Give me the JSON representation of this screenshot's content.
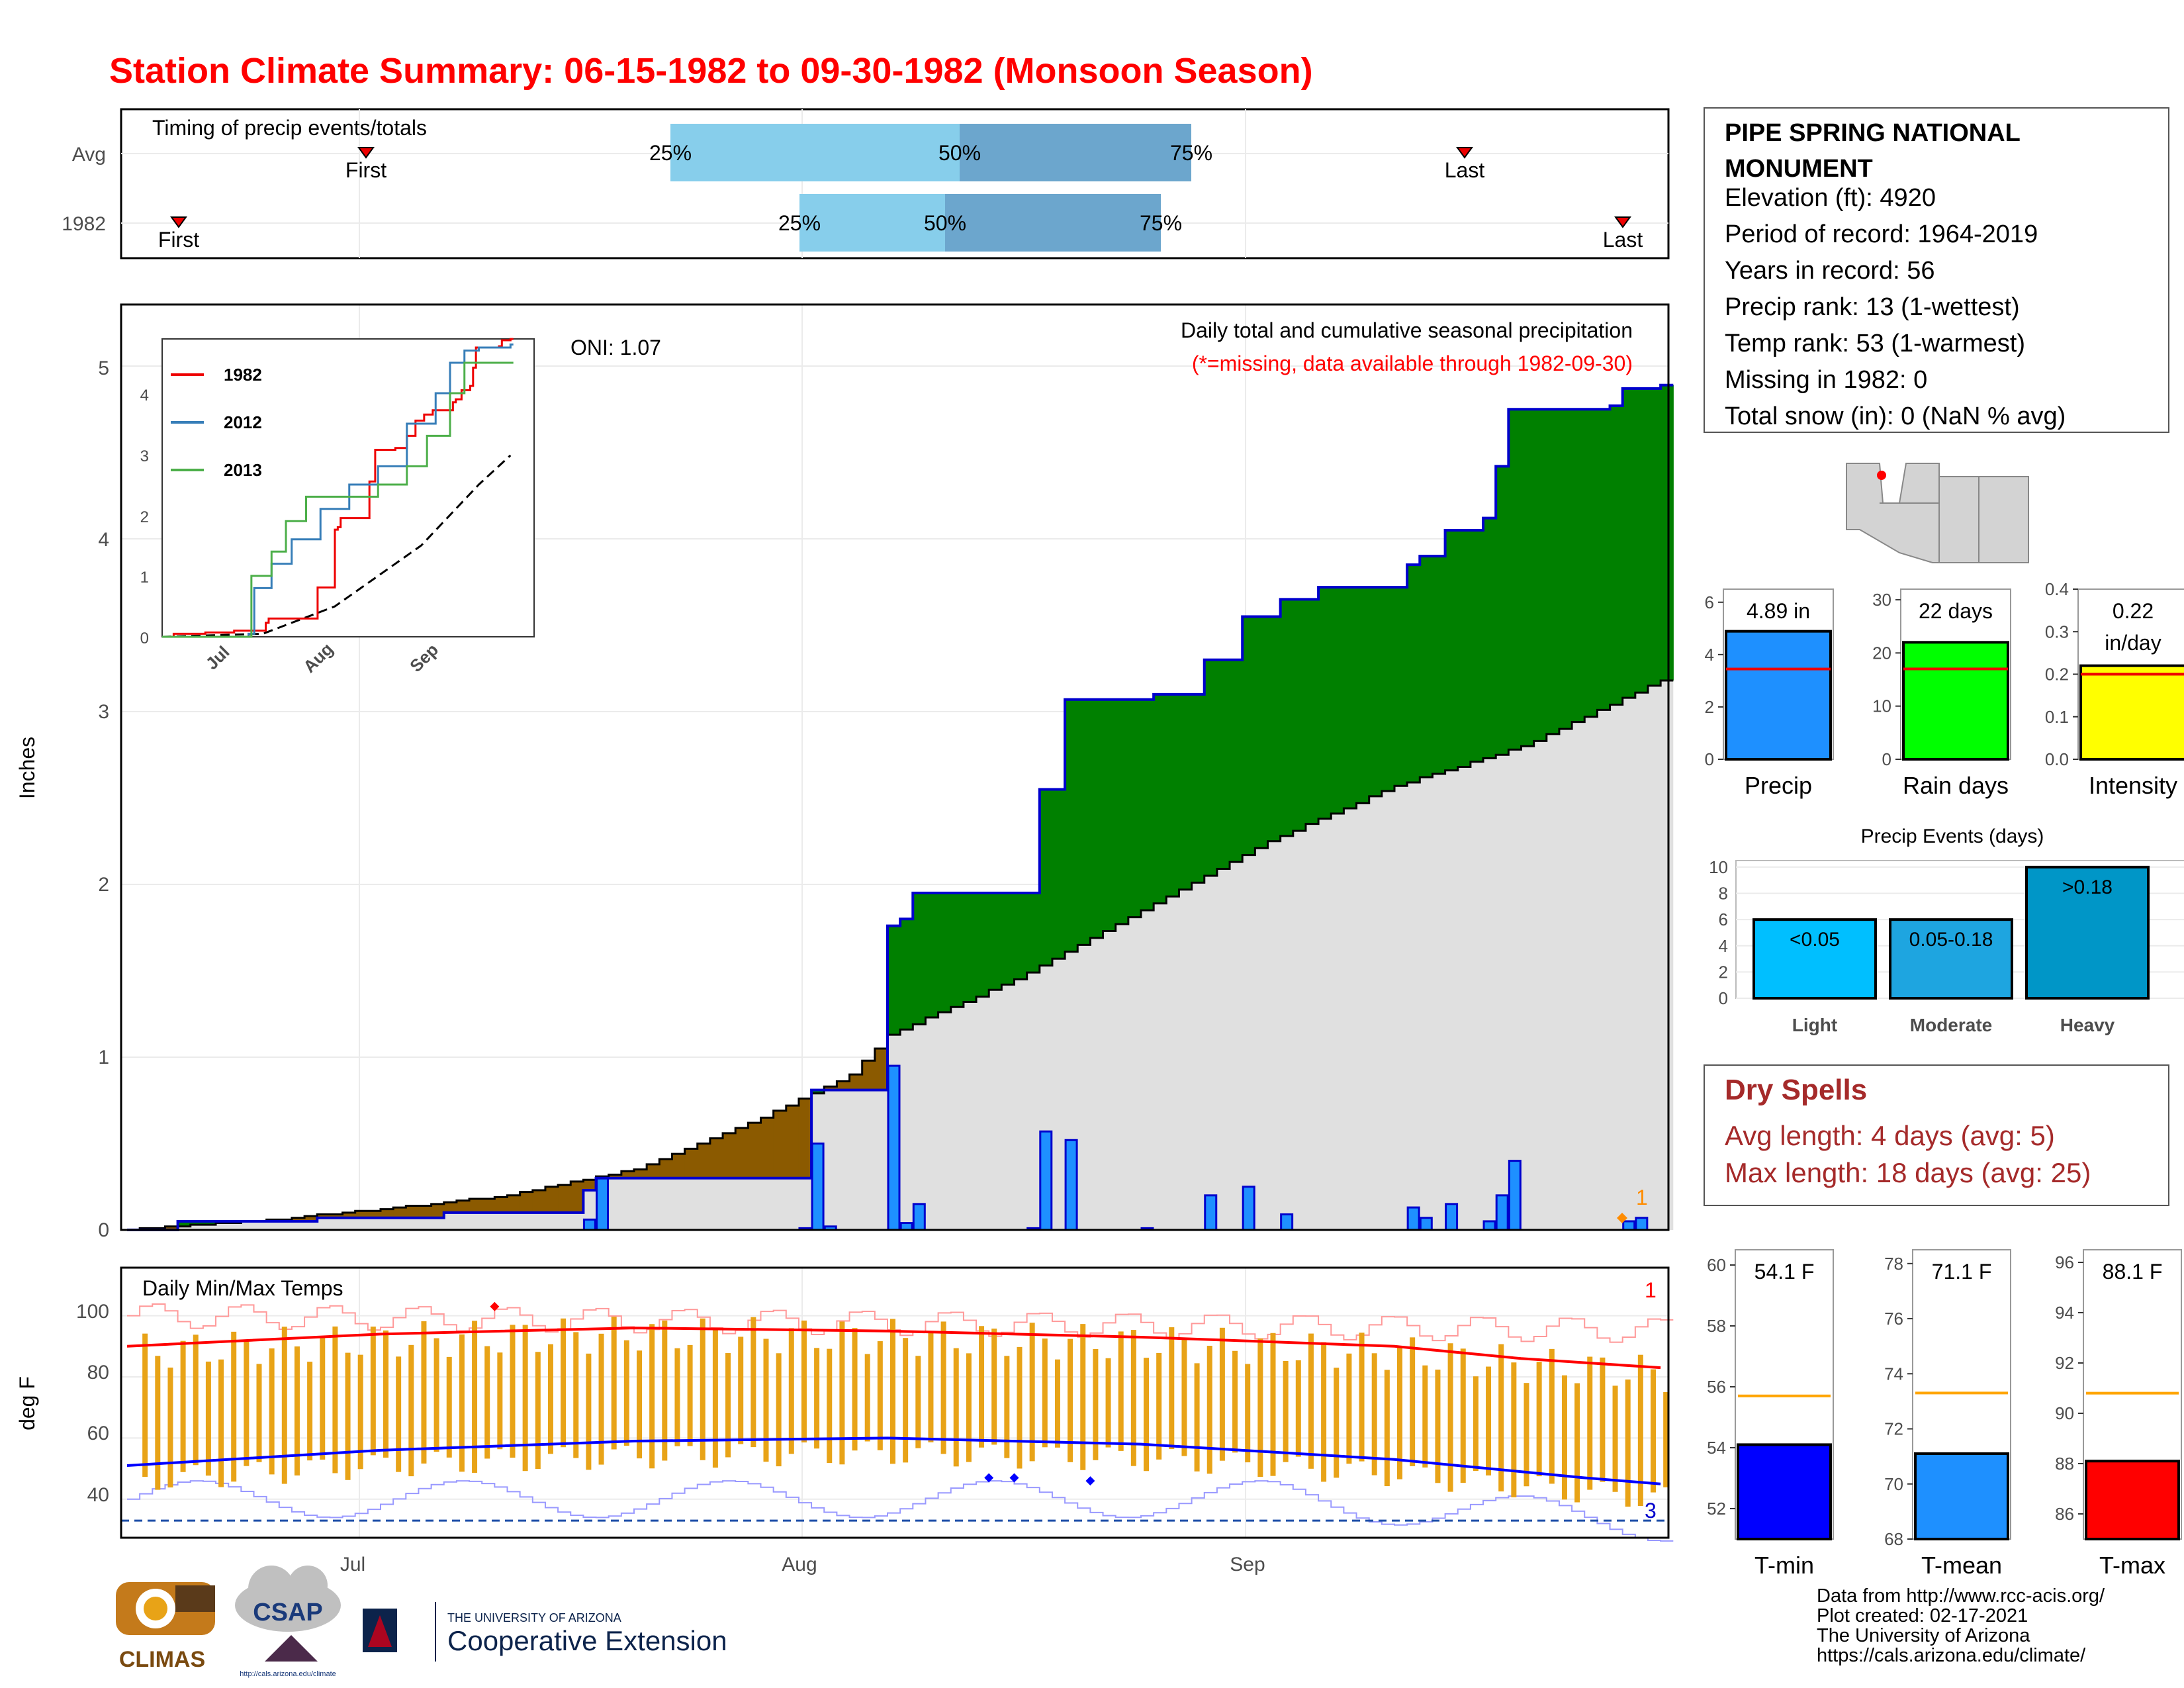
{
  "title": "Station Climate Summary: 06-15-1982 to 09-30-1982 (Monsoon Season)",
  "colors": {
    "title": "#ff0000",
    "precip_bar": "#1e90ff",
    "brown": "#8b5a00",
    "green": "#008000",
    "gray": "#e0e0e0",
    "tmax": "#ff0000",
    "tmin": "#0000ff",
    "range": "#e8a317",
    "dry": "#a52a2a"
  },
  "timing": {
    "title": "Timing of precip events/totals",
    "rows": [
      {
        "label": "Avg",
        "first": "First",
        "last": "Last",
        "q25": "25%",
        "q50": "50%",
        "q75": "75%"
      },
      {
        "label": "1982",
        "first": "First",
        "last": "Last",
        "q25": "25%",
        "q50": "50%",
        "q75": "75%"
      }
    ]
  },
  "station": {
    "name": "PIPE SPRING NATIONAL MONUMENT",
    "lines": [
      "Elevation (ft): 4920",
      "Period of record: 1964-2019",
      "Years in record: 56",
      "Precip rank: 13 (1-wettest)",
      "Temp rank: 53 (1-warmest)",
      "Missing in 1982: 0",
      "Total snow (in): 0 (NaN % avg)"
    ]
  },
  "main": {
    "ylabel": "Inches",
    "oni": "ONI: 1.07",
    "subtitle": "Daily total and cumulative seasonal precipitation",
    "missing_note": "(*=missing, data available through 1982-09-30)",
    "flag": "1",
    "x_ticks": [
      "Jul",
      "Aug",
      "Sep"
    ],
    "y_ticks": [
      "0",
      "1",
      "2",
      "3",
      "4",
      "5"
    ]
  },
  "inset": {
    "legend": [
      "1982",
      "2012",
      "2013"
    ],
    "y_ticks": [
      "0",
      "1",
      "2",
      "3",
      "4"
    ],
    "x_ticks": [
      "Jul",
      "Aug",
      "Sep"
    ]
  },
  "temp": {
    "title": "Daily Min/Max Temps",
    "ylabel": "deg F",
    "flag_top": "1",
    "flag_bottom": "3",
    "y_ticks": [
      "40",
      "60",
      "80",
      "100"
    ]
  },
  "small": {
    "precip": {
      "value": "4.89 in",
      "label": "Precip",
      "ticks": [
        "0",
        "2",
        "4",
        "6"
      ]
    },
    "raindays": {
      "value": "22 days",
      "label": "Rain days",
      "ticks": [
        "0",
        "10",
        "20",
        "30"
      ]
    },
    "intensity": {
      "value": "0.22",
      "unit": "in/day",
      "label": "Intensity",
      "ticks": [
        "0.0",
        "0.1",
        "0.2",
        "0.3",
        "0.4"
      ]
    }
  },
  "events": {
    "title": "Precip Events (days)",
    "labels": [
      "Light",
      "Moderate",
      "Heavy"
    ],
    "bar_labels": [
      "<0.05",
      "0.05-0.18",
      ">0.18"
    ],
    "ticks": [
      "0",
      "2",
      "4",
      "6",
      "8",
      "10"
    ]
  },
  "dry": {
    "title": "Dry Spells",
    "avg": "Avg length: 4 days (avg: 5)",
    "max": "Max length: 18 days (avg: 25)"
  },
  "temps_small": {
    "tmin": {
      "value": "54.1 F",
      "label": "T-min",
      "ticks": [
        "52",
        "54",
        "56",
        "58",
        "60"
      ]
    },
    "tmean": {
      "value": "71.1 F",
      "label": "T-mean",
      "ticks": [
        "68",
        "70",
        "72",
        "74",
        "76",
        "78"
      ]
    },
    "tmax": {
      "value": "88.1 F",
      "label": "T-max",
      "ticks": [
        "86",
        "88",
        "90",
        "92",
        "94",
        "96"
      ]
    }
  },
  "credits": [
    "Data from http://www.rcc-acis.org/",
    "Plot created: 02-17-2021",
    "The University of Arizona",
    "https://cals.arizona.edu/climate/"
  ],
  "logos": {
    "climas": "CLIMAS",
    "csap": "CSAP",
    "csap_url": "http://cals.arizona.edu/climate",
    "ua_small": "THE UNIVERSITY OF ARIZONA",
    "ua_big": "Cooperative Extension"
  },
  "chart_data": [
    {
      "type": "area",
      "title": "Daily total and cumulative seasonal precipitation",
      "ylabel": "Inches",
      "ylim": [
        0,
        5.3
      ],
      "x_range": [
        "1982-06-15",
        "1982-09-30"
      ],
      "cumulative_1982": [
        [
          0,
          0
        ],
        [
          4,
          0.05
        ],
        [
          15,
          0.07
        ],
        [
          25,
          0.1
        ],
        [
          36,
          0.23
        ],
        [
          37,
          0.3
        ],
        [
          53,
          0.3
        ],
        [
          54,
          0.81
        ],
        [
          59,
          0.81
        ],
        [
          60,
          1.76
        ],
        [
          61,
          1.8
        ],
        [
          62,
          1.95
        ],
        [
          71,
          1.95
        ],
        [
          72,
          2.55
        ],
        [
          74,
          3.07
        ],
        [
          80,
          3.07
        ],
        [
          81,
          3.1
        ],
        [
          85,
          3.3
        ],
        [
          88,
          3.55
        ],
        [
          91,
          3.65
        ],
        [
          94,
          3.72
        ],
        [
          100,
          3.72
        ],
        [
          101,
          3.85
        ],
        [
          102,
          3.9
        ],
        [
          104,
          4.05
        ],
        [
          107,
          4.12
        ],
        [
          108,
          4.42
        ],
        [
          109,
          4.75
        ],
        [
          117,
          4.77
        ],
        [
          118,
          4.87
        ],
        [
          121,
          4.89
        ]
      ],
      "cumulative_avg": [
        [
          0,
          0
        ],
        [
          10,
          0.05
        ],
        [
          20,
          0.12
        ],
        [
          30,
          0.2
        ],
        [
          40,
          0.35
        ],
        [
          50,
          0.65
        ],
        [
          57,
          0.9
        ],
        [
          60,
          1.13
        ],
        [
          70,
          1.45
        ],
        [
          80,
          1.85
        ],
        [
          90,
          2.25
        ],
        [
          100,
          2.57
        ],
        [
          110,
          2.8
        ],
        [
          121,
          3.18
        ]
      ],
      "daily_precip": [
        [
          36,
          0.06
        ],
        [
          37,
          0.3
        ],
        [
          53,
          0.01
        ],
        [
          54,
          0.5
        ],
        [
          55,
          0.02
        ],
        [
          60,
          0.95
        ],
        [
          61,
          0.04
        ],
        [
          62,
          0.15
        ],
        [
          71,
          0.01
        ],
        [
          72,
          0.57
        ],
        [
          74,
          0.52
        ],
        [
          80,
          0.01
        ],
        [
          85,
          0.2
        ],
        [
          88,
          0.25
        ],
        [
          91,
          0.09
        ],
        [
          101,
          0.13
        ],
        [
          102,
          0.07
        ],
        [
          104,
          0.15
        ],
        [
          107,
          0.05
        ],
        [
          108,
          0.2
        ],
        [
          109,
          0.4
        ],
        [
          118,
          0.05
        ],
        [
          119,
          0.07
        ]
      ]
    },
    {
      "type": "line",
      "title": "Daily Min/Max Temps",
      "ylabel": "deg F",
      "ylim": [
        26,
        112
      ],
      "avg_tmax": [
        [
          0,
          90
        ],
        [
          20,
          94
        ],
        [
          40,
          96
        ],
        [
          60,
          95
        ],
        [
          80,
          93
        ],
        [
          100,
          90
        ],
        [
          110,
          86
        ],
        [
          121,
          83
        ]
      ],
      "avg_tmin": [
        [
          0,
          51
        ],
        [
          20,
          56
        ],
        [
          40,
          59
        ],
        [
          60,
          60
        ],
        [
          80,
          58
        ],
        [
          100,
          53
        ],
        [
          115,
          47
        ],
        [
          121,
          45
        ]
      ],
      "record_min_line": 33
    },
    {
      "type": "bar",
      "categories": [
        "Precip"
      ],
      "values": [
        4.89
      ],
      "avg": 3.45,
      "ylim": [
        0,
        6.5
      ]
    },
    {
      "type": "bar",
      "categories": [
        "Rain days"
      ],
      "values": [
        22
      ],
      "avg": 17,
      "ylim": [
        0,
        32
      ]
    },
    {
      "type": "bar",
      "categories": [
        "Intensity"
      ],
      "values": [
        0.22
      ],
      "avg": 0.2,
      "ylim": [
        0,
        0.4
      ]
    },
    {
      "type": "bar",
      "title": "Precip Events (days)",
      "categories": [
        "Light",
        "Moderate",
        "Heavy"
      ],
      "values": [
        6,
        6,
        10
      ],
      "ylim": [
        0,
        10.5
      ]
    },
    {
      "type": "bar",
      "categories": [
        "T-min"
      ],
      "values": [
        54.1
      ],
      "avg": 55.7,
      "ylim": [
        51,
        60.5
      ]
    },
    {
      "type": "bar",
      "categories": [
        "T-mean"
      ],
      "values": [
        71.1
      ],
      "avg": 73.3,
      "ylim": [
        68,
        78.5
      ]
    },
    {
      "type": "bar",
      "categories": [
        "T-max"
      ],
      "values": [
        88.1
      ],
      "avg": 90.8,
      "ylim": [
        85,
        96.5
      ]
    }
  ]
}
